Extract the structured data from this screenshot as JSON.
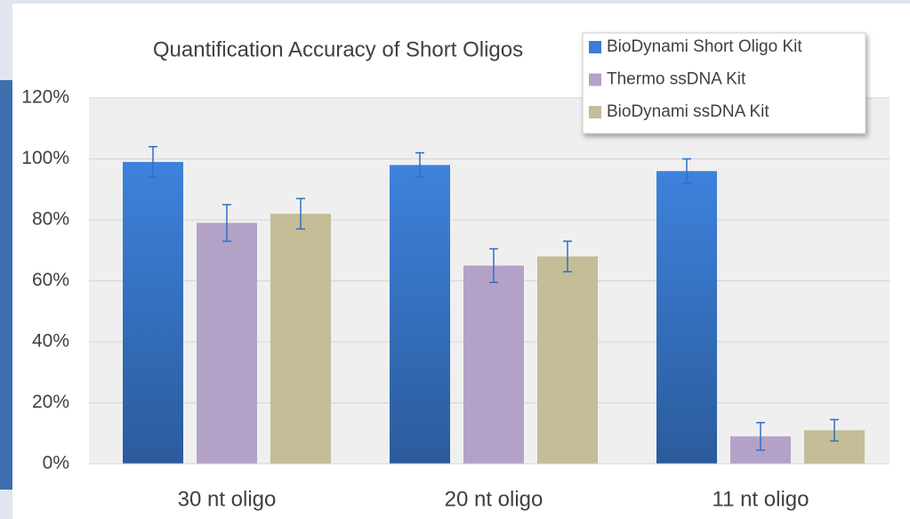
{
  "chart_data": {
    "type": "bar",
    "title": "Quantification Accuracy of Short Oligos",
    "categories": [
      "30 nt oligo",
      "20 nt oligo",
      "11 nt oligo"
    ],
    "series": [
      {
        "name": "BioDynami Short Oligo Kit",
        "color": "#3b7dd8",
        "values": [
          99,
          98,
          96
        ],
        "errors": [
          5,
          4,
          4
        ]
      },
      {
        "name": "Thermo ssDNA Kit",
        "color": "#b3a2c7",
        "values": [
          79,
          65,
          9
        ],
        "errors": [
          6,
          5.5,
          4.5
        ]
      },
      {
        "name": "BioDynami ssDNA Kit",
        "color": "#c4bd97",
        "values": [
          82,
          68,
          11
        ],
        "errors": [
          5,
          5,
          3.5
        ]
      }
    ],
    "ylim": [
      0,
      120
    ],
    "yticks": [
      {
        "value": 0,
        "label": "0%"
      },
      {
        "value": 20,
        "label": "20%"
      },
      {
        "value": 40,
        "label": "40%"
      },
      {
        "value": 60,
        "label": "60%"
      },
      {
        "value": 80,
        "label": "80%"
      },
      {
        "value": 100,
        "label": "100%"
      },
      {
        "value": 120,
        "label": "120%"
      }
    ],
    "grid": true,
    "legend": "top-right"
  }
}
